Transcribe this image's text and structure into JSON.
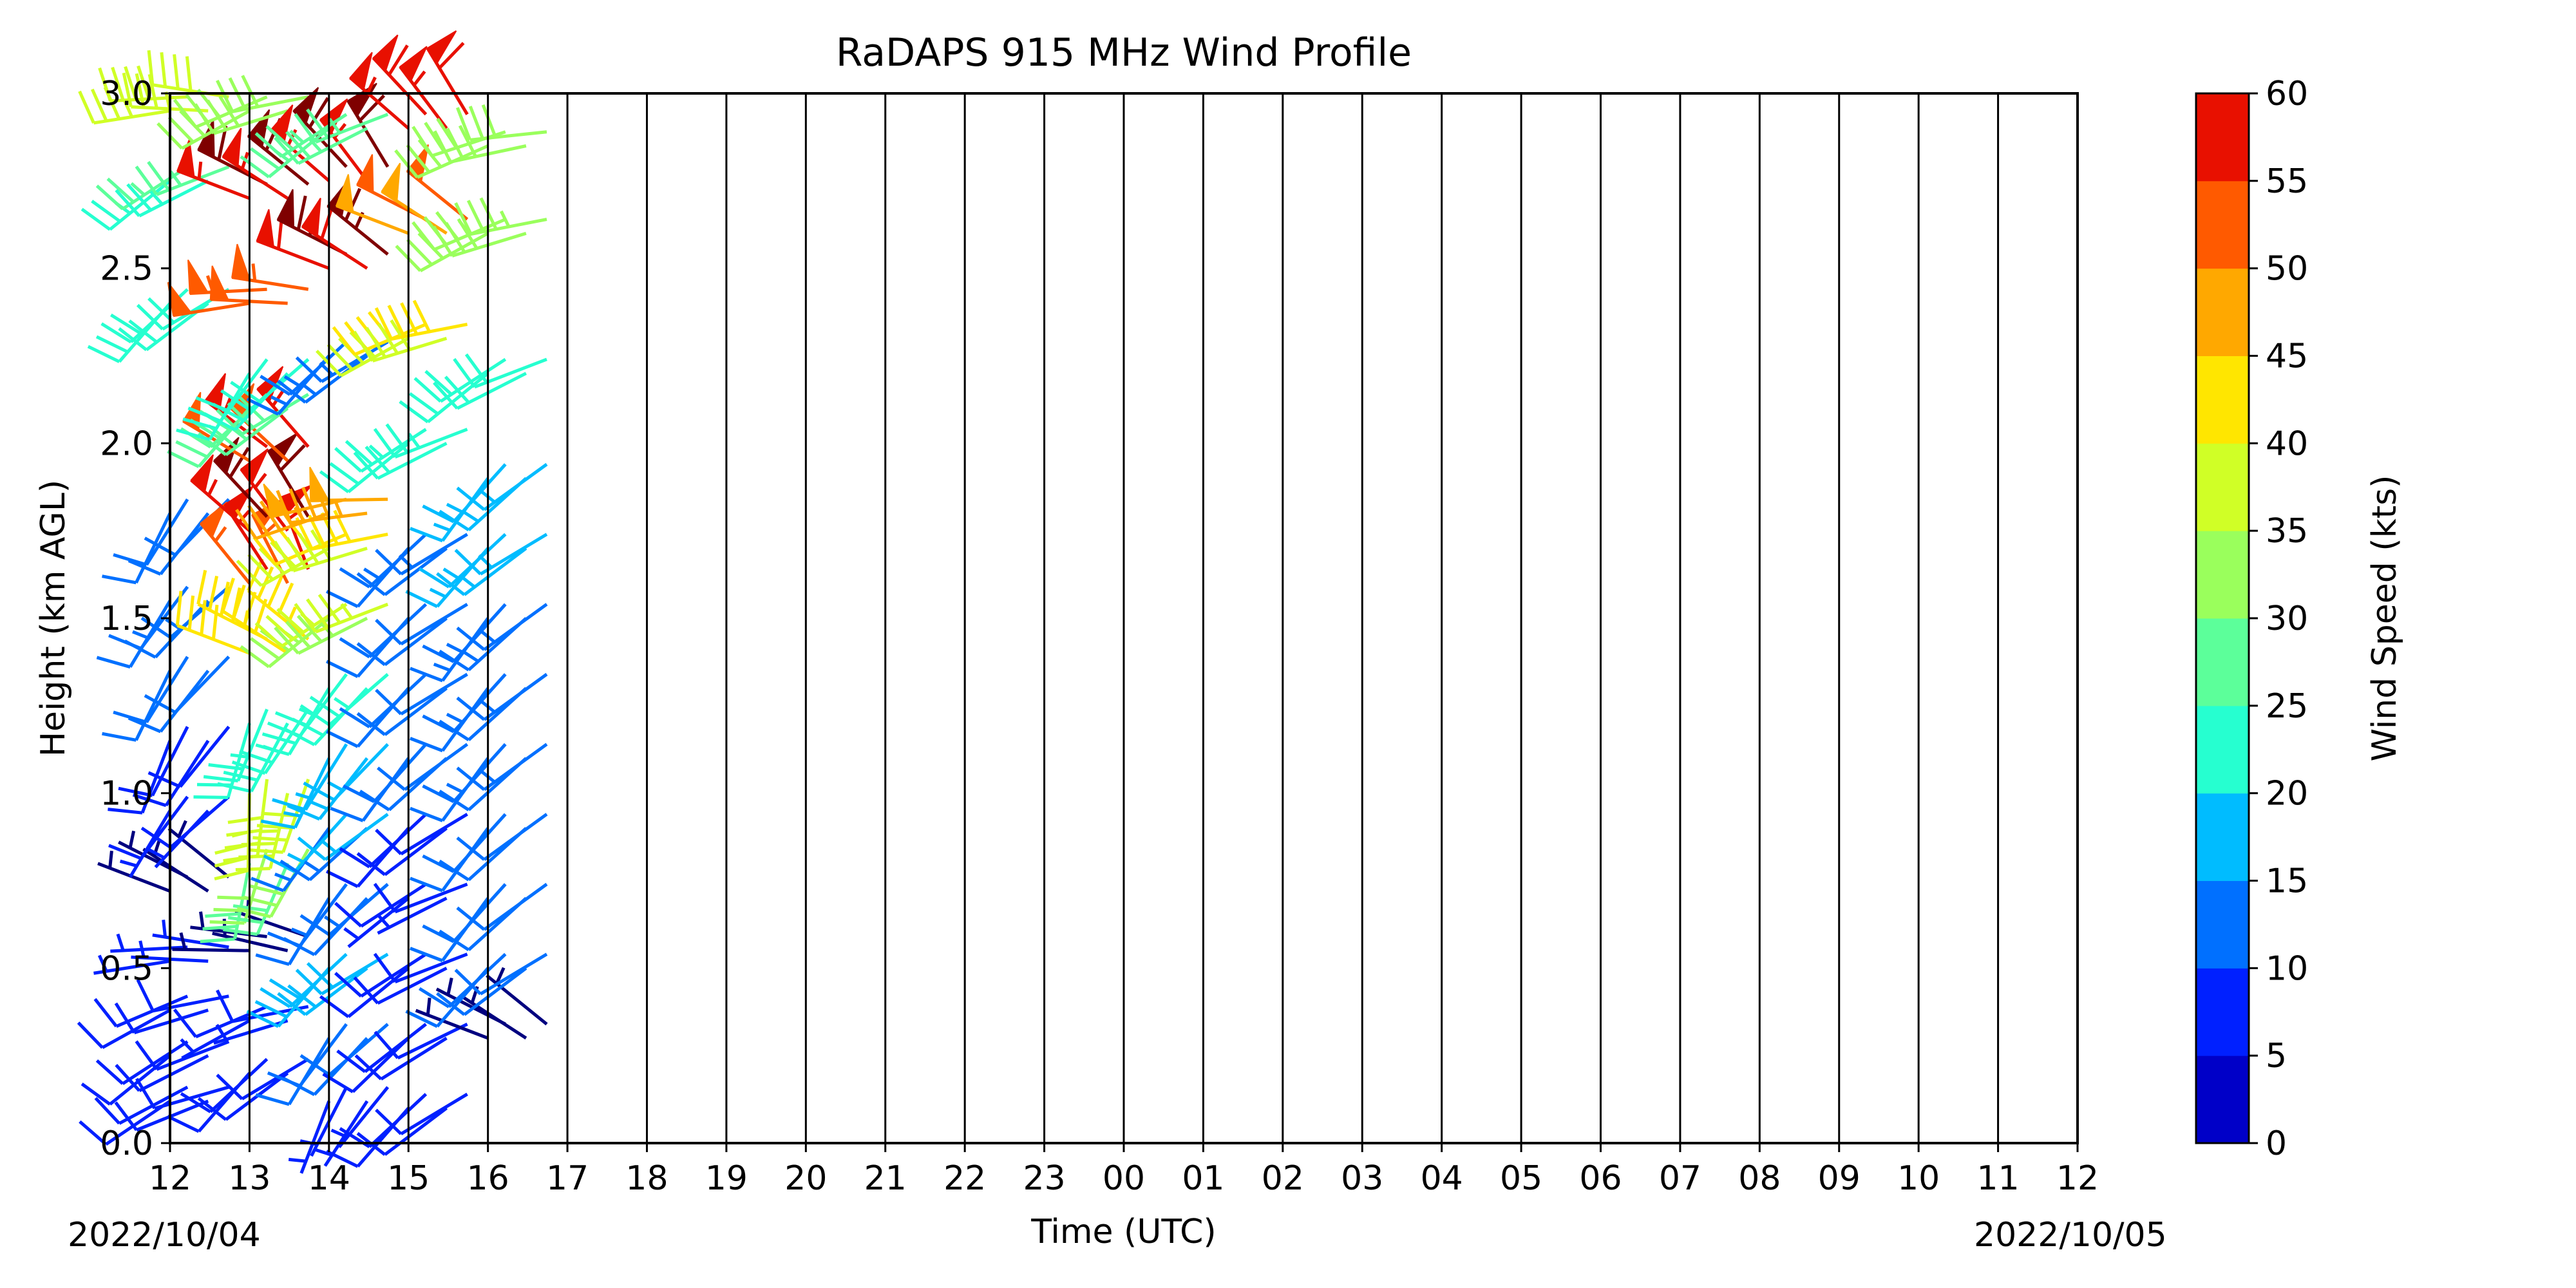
{
  "chart_data": {
    "type": "wind-barb-profile",
    "title": "RaDAPS 915 MHz Wind Profile",
    "xlabel": "Time (UTC)",
    "ylabel": "Height (km AGL)",
    "x_ticks": [
      "12",
      "13",
      "14",
      "15",
      "16",
      "17",
      "18",
      "19",
      "20",
      "21",
      "22",
      "23",
      "00",
      "01",
      "02",
      "03",
      "04",
      "05",
      "06",
      "07",
      "08",
      "09",
      "10",
      "11",
      "12"
    ],
    "start_date_label": "2022/10/04",
    "end_date_label": "2022/10/05",
    "ylim": [
      0.0,
      3.0
    ],
    "y_ticks": [
      "0.0",
      "0.5",
      "1.0",
      "1.5",
      "2.0",
      "2.5",
      "3.0"
    ],
    "y_tick_values": [
      0.0,
      0.5,
      1.0,
      1.5,
      2.0,
      2.5,
      3.0
    ],
    "grid": "vertical lines at each hour",
    "colorbar": {
      "label": "Wind Speed (kts)",
      "min": 0,
      "max": 60,
      "ticks": [
        "0",
        "5",
        "10",
        "15",
        "20",
        "25",
        "30",
        "35",
        "40",
        "45",
        "50",
        "55",
        "60"
      ],
      "colors": [
        "#00007f",
        "#0000c8",
        "#0020ff",
        "#0070ff",
        "#00bcff",
        "#26ffd0",
        "#5cff9a",
        "#9aff5c",
        "#d0ff26",
        "#ffe600",
        "#ffa800",
        "#ff5a00",
        "#e81000",
        "#7f0000"
      ]
    },
    "barb_columns": [
      {
        "hour": 0,
        "profile": [
          [
            0.12,
            8,
            245
          ],
          [
            0.25,
            9,
            240
          ],
          [
            0.38,
            8,
            250
          ],
          [
            0.52,
            5,
            270
          ],
          [
            0.72,
            3,
            300
          ],
          [
            0.95,
            7,
            220
          ],
          [
            1.15,
            9,
            210
          ],
          [
            1.35,
            11,
            215
          ],
          [
            1.55,
            12,
            220
          ],
          [
            1.8,
            10,
            215
          ],
          [
            2.4,
            20,
            230
          ],
          [
            2.75,
            24,
            240
          ],
          [
            2.95,
            37,
            270
          ]
        ]
      },
      {
        "hour": 1,
        "profile": [
          [
            0.2,
            8,
            230
          ],
          [
            0.35,
            7,
            250
          ],
          [
            0.55,
            4,
            280
          ],
          [
            0.8,
            28,
            200
          ],
          [
            1.0,
            36,
            190
          ],
          [
            1.2,
            22,
            205
          ],
          [
            1.4,
            40,
            300
          ],
          [
            1.6,
            53,
            330
          ],
          [
            1.75,
            56,
            320
          ],
          [
            1.95,
            52,
            310
          ],
          [
            2.1,
            27,
            230
          ],
          [
            2.2,
            20,
            220
          ],
          [
            2.4,
            50,
            270
          ],
          [
            2.7,
            57,
            300
          ],
          [
            2.95,
            30,
            250
          ]
        ]
      },
      {
        "hour": 2,
        "profile": [
          [
            0.12,
            6,
            210
          ],
          [
            0.3,
            10,
            220
          ],
          [
            0.5,
            18,
            230
          ],
          [
            0.7,
            12,
            220
          ],
          [
            0.9,
            14,
            225
          ],
          [
            1.1,
            16,
            215
          ],
          [
            1.3,
            22,
            220
          ],
          [
            1.5,
            33,
            240
          ],
          [
            1.7,
            38,
            250
          ],
          [
            1.8,
            46,
            260
          ],
          [
            2.25,
            13,
            230
          ],
          [
            2.5,
            58,
            300
          ],
          [
            2.75,
            56,
            320
          ],
          [
            2.9,
            25,
            240
          ]
        ]
      },
      {
        "hour": 3,
        "profile": [
          [
            0.1,
            8,
            230
          ],
          [
            0.3,
            9,
            235
          ],
          [
            0.5,
            8,
            240
          ],
          [
            0.7,
            7,
            240
          ],
          [
            0.9,
            9,
            230
          ],
          [
            1.1,
            10,
            225
          ],
          [
            1.3,
            11,
            230
          ],
          [
            1.5,
            11,
            230
          ],
          [
            1.7,
            12,
            230
          ],
          [
            2.0,
            22,
            240
          ],
          [
            2.3,
            38,
            250
          ],
          [
            2.6,
            48,
            300
          ],
          [
            2.9,
            55,
            320
          ]
        ]
      },
      {
        "hour": 4,
        "profile": [
          [
            0.3,
            4,
            300
          ],
          [
            0.5,
            10,
            230
          ],
          [
            0.7,
            10,
            225
          ],
          [
            0.9,
            11,
            225
          ],
          [
            1.1,
            12,
            225
          ],
          [
            1.3,
            12,
            225
          ],
          [
            1.5,
            13,
            225
          ],
          [
            1.7,
            15,
            230
          ],
          [
            1.9,
            16,
            225
          ],
          [
            2.2,
            20,
            240
          ],
          [
            2.6,
            32,
            250
          ],
          [
            2.85,
            30,
            255
          ]
        ]
      }
    ]
  }
}
